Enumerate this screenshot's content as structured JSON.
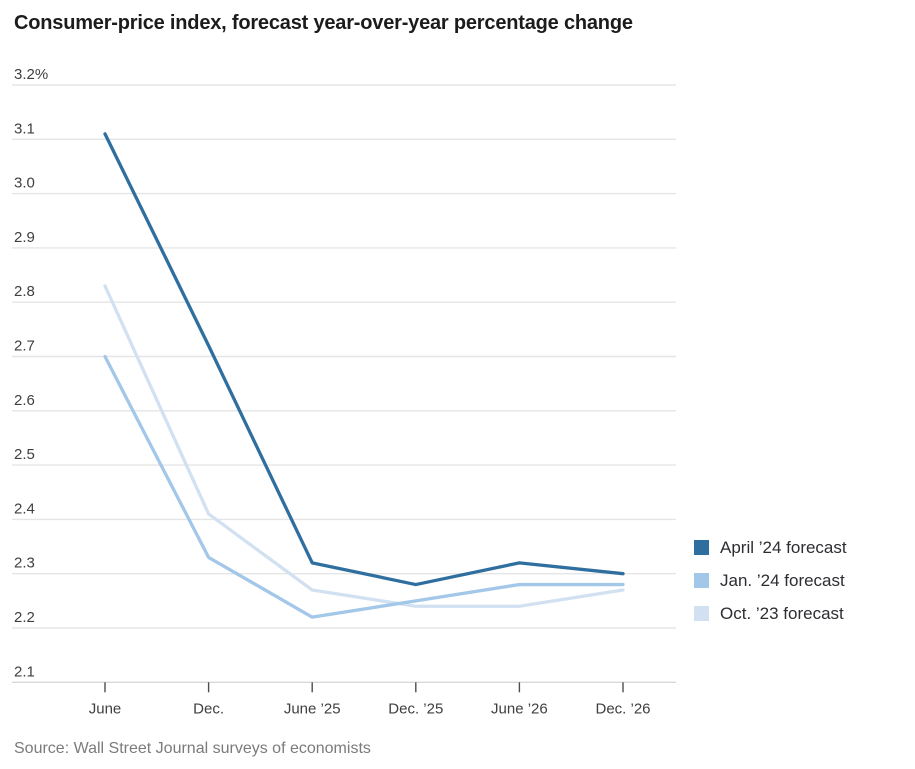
{
  "title": "Consumer-price index, forecast year-over-year percentage change",
  "source": "Source: Wall Street Journal surveys of economists",
  "colors": {
    "grid": "#e5e5e5",
    "axis_line": "#d9d9d9",
    "tick": "#4d4d4d",
    "axis_label": "#3f3f3f",
    "title_text": "#1c1c1c",
    "legend_text": "#2d2d33",
    "source_text": "#7b7b7b"
  },
  "chart_data": {
    "type": "line",
    "title": "Consumer-price index, forecast year-over-year percentage change",
    "categories": [
      "June",
      "Dec.",
      "June ’25",
      "Dec. ’25",
      "June ’26",
      "Dec. ’26"
    ],
    "series": [
      {
        "name": "April ’24 forecast",
        "color": "#2f6f9f",
        "values": [
          3.11,
          2.72,
          2.32,
          2.28,
          2.32,
          2.3
        ]
      },
      {
        "name": "Jan. ’24 forecast",
        "color": "#a3c7e8",
        "values": [
          2.7,
          2.33,
          2.22,
          2.25,
          2.28,
          2.28
        ]
      },
      {
        "name": "Oct. ’23 forecast",
        "color": "#d2e1f2",
        "values": [
          2.83,
          2.41,
          2.27,
          2.24,
          2.24,
          2.27
        ]
      }
    ],
    "xlabel": "",
    "ylabel": "",
    "ylim": [
      2.1,
      3.2
    ],
    "ytick_step": 0.1,
    "ytick_labels": [
      "3.2%",
      "3.1",
      "3.0",
      "2.9",
      "2.8",
      "2.7",
      "2.6",
      "2.5",
      "2.4",
      "2.3",
      "2.2",
      "2.1"
    ],
    "grid": true,
    "legend_position": "right"
  }
}
